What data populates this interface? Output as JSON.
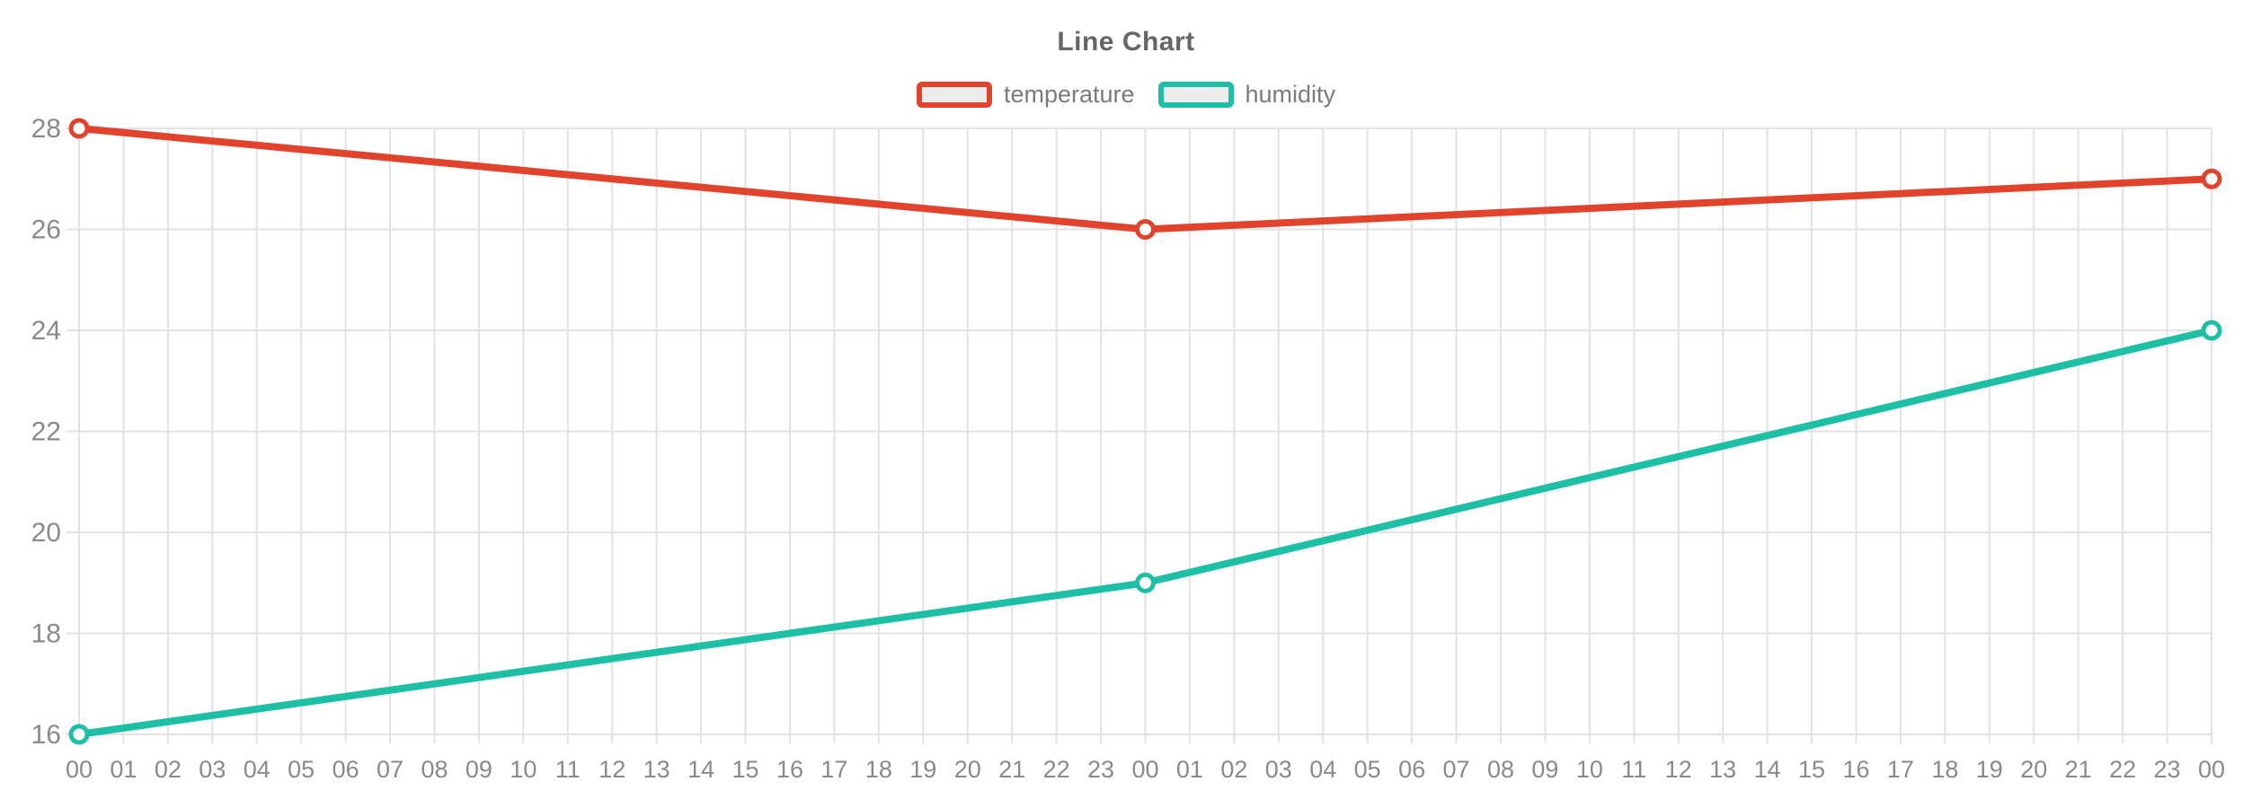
{
  "title": "Line Chart",
  "colors": {
    "temperature": "#e2432d",
    "humidity": "#1dbfa5",
    "grid": "#e2e2e2",
    "axis_text": "#8a8a8a",
    "title_text": "#666666",
    "legend_text": "#7b7b7b",
    "swatch_fill": "#ececec",
    "marker_fill": "#fdfdfd"
  },
  "chart_data": {
    "type": "line",
    "title": "Line Chart",
    "x_labels": [
      "00",
      "01",
      "02",
      "03",
      "04",
      "05",
      "06",
      "07",
      "08",
      "09",
      "10",
      "11",
      "12",
      "13",
      "14",
      "15",
      "16",
      "17",
      "18",
      "19",
      "20",
      "21",
      "22",
      "23",
      "00",
      "01",
      "02",
      "03",
      "04",
      "05",
      "06",
      "07",
      "08",
      "09",
      "10",
      "11",
      "12",
      "13",
      "14",
      "15",
      "16",
      "17",
      "18",
      "19",
      "20",
      "21",
      "22",
      "23",
      "00"
    ],
    "y_ticks": [
      16,
      18,
      20,
      22,
      24,
      26,
      28
    ],
    "ylim": [
      16,
      28
    ],
    "grid": true,
    "legend_position": "top-center",
    "series": [
      {
        "name": "temperature",
        "color": "#e2432d",
        "points": [
          {
            "x": 0,
            "y": 28
          },
          {
            "x": 24,
            "y": 26
          },
          {
            "x": 48,
            "y": 27
          }
        ]
      },
      {
        "name": "humidity",
        "color": "#1dbfa5",
        "points": [
          {
            "x": 0,
            "y": 16
          },
          {
            "x": 24,
            "y": 19
          },
          {
            "x": 48,
            "y": 24
          }
        ]
      }
    ]
  }
}
